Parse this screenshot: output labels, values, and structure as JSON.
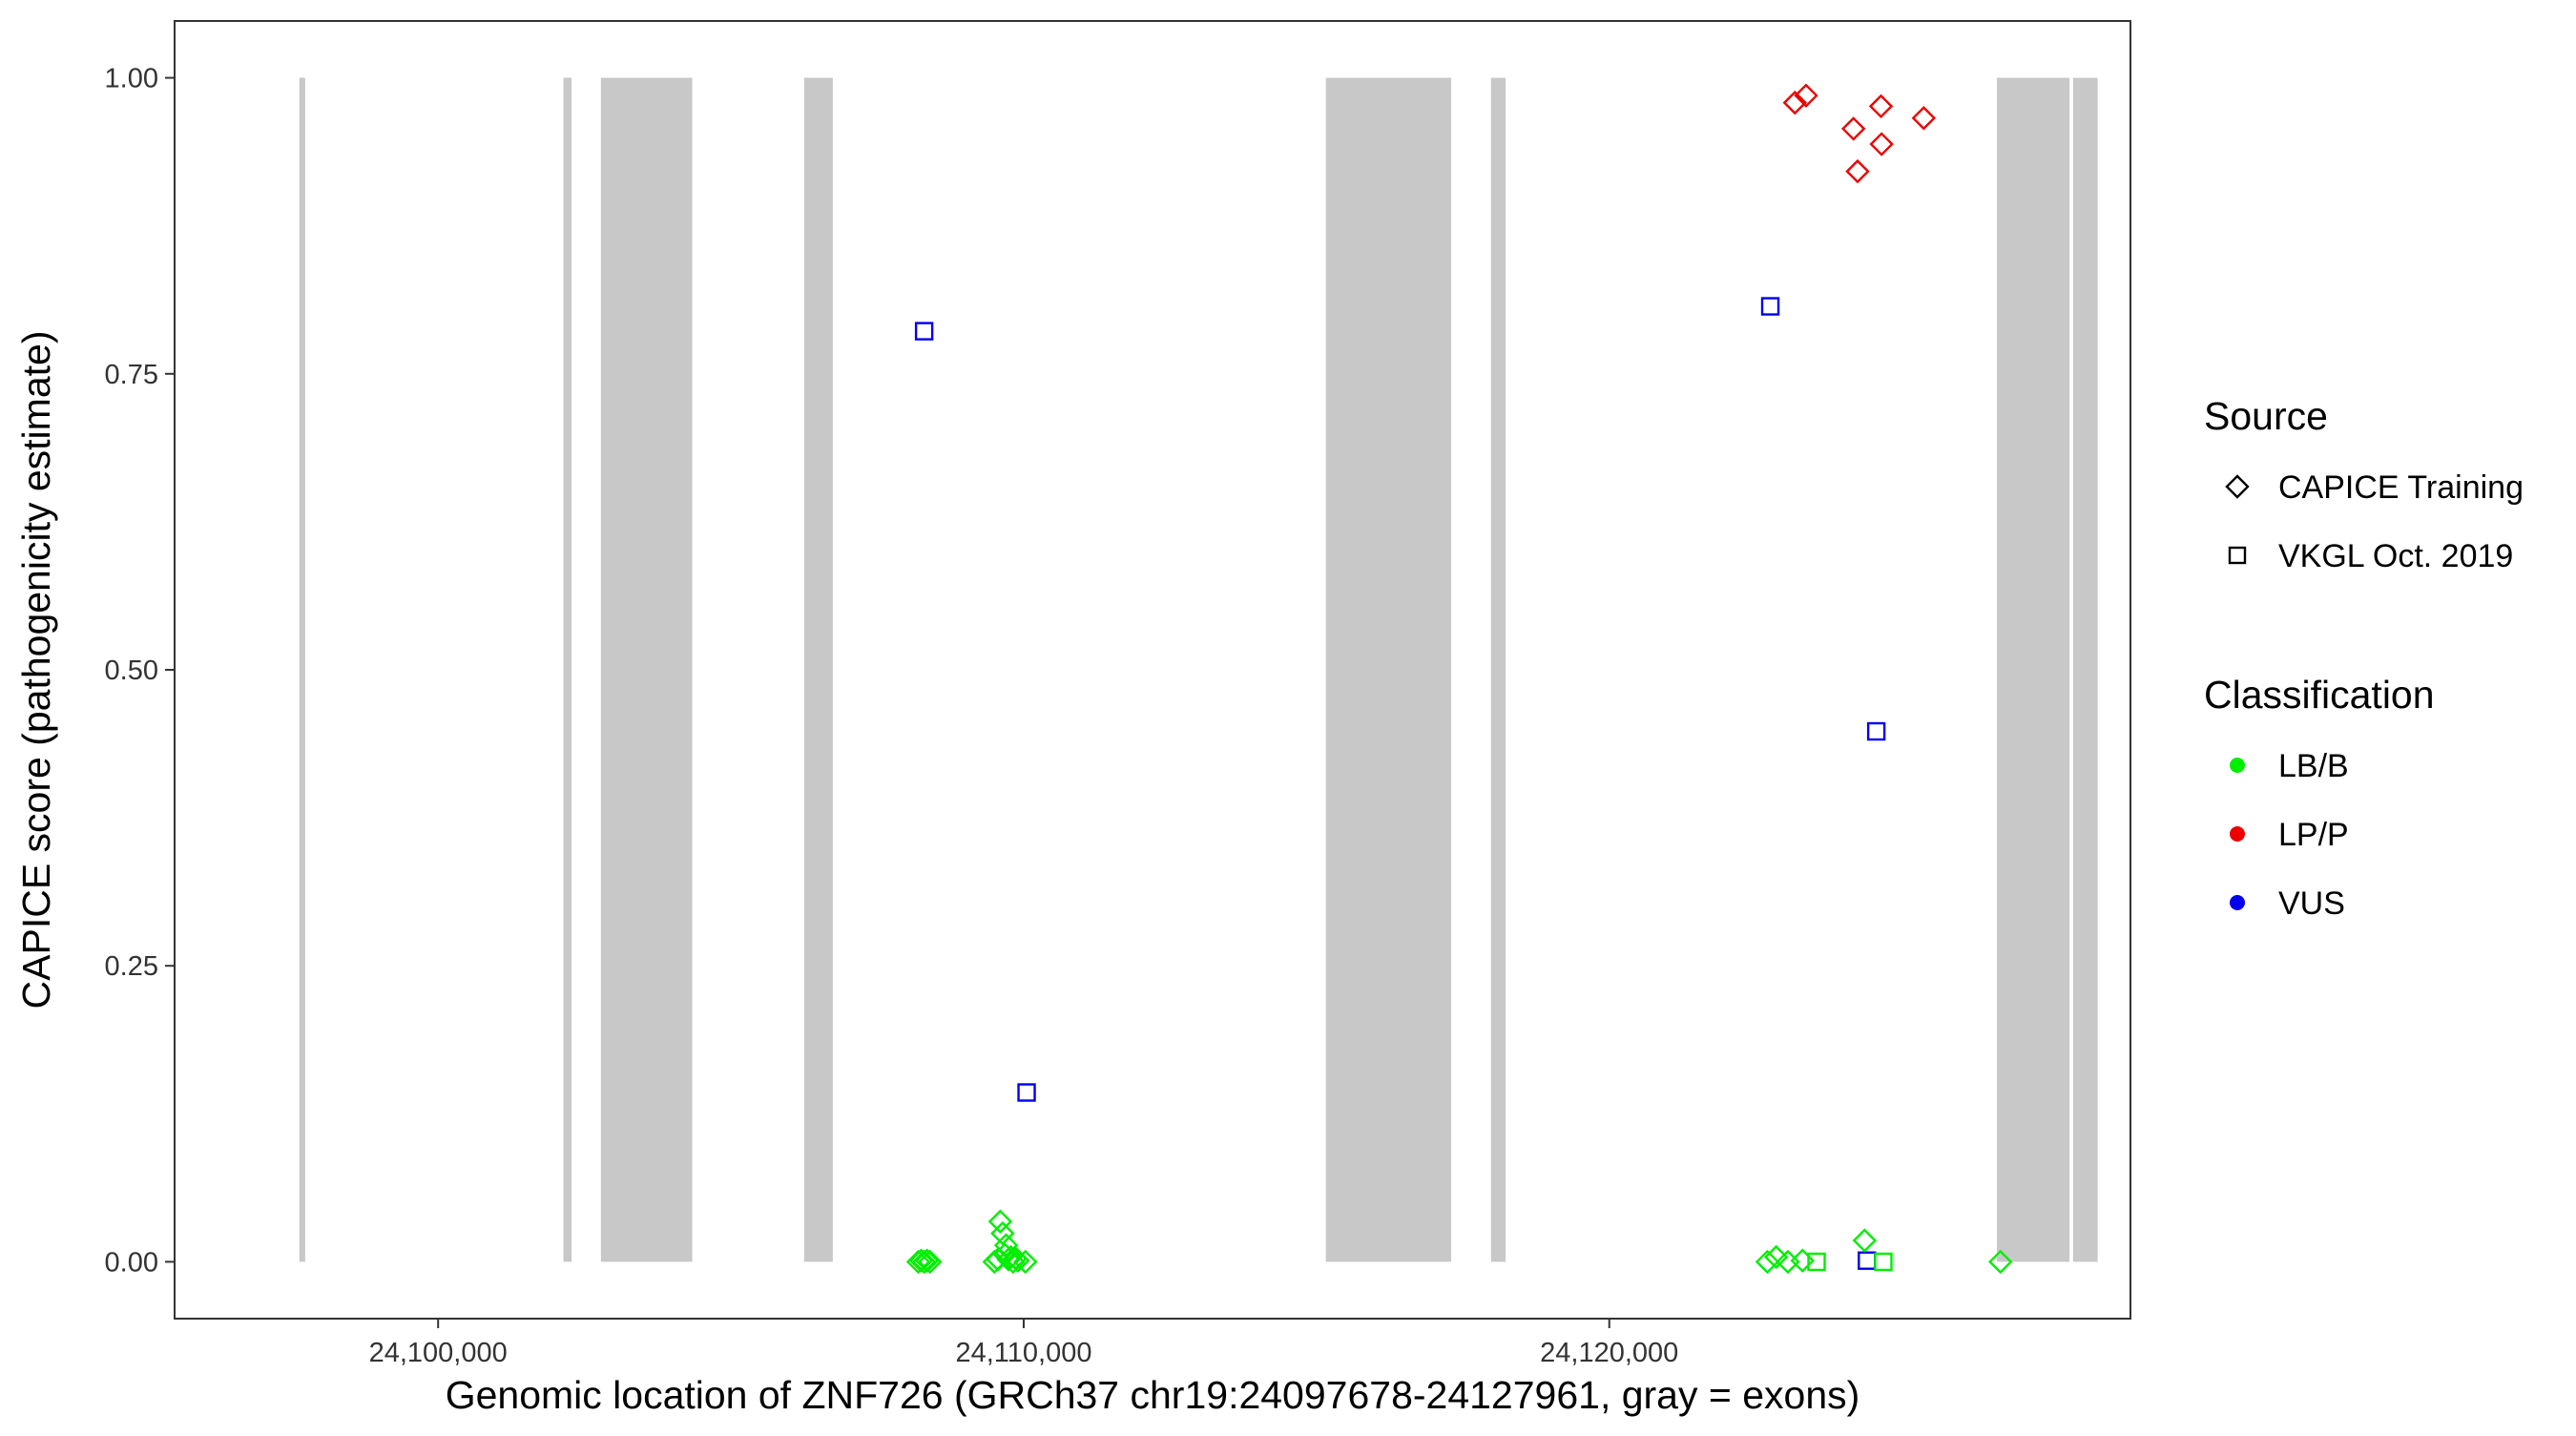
{
  "chart_data": {
    "type": "scatter",
    "title": "",
    "xlabel": "Genomic location of ZNF726 (GRCh37 chr19:24097678-24127961, gray = exons)",
    "ylabel": "CAPICE score (pathogenicity estimate)",
    "xlim": [
      24095500,
      24128900
    ],
    "ylim": [
      -0.048,
      1.048
    ],
    "x_ticks": [
      24100000,
      24110000,
      24120000
    ],
    "x_tick_labels": [
      "24,100,000",
      "24,110,000",
      "24,120,000"
    ],
    "y_ticks": [
      0,
      0.25,
      0.5,
      0.75,
      1
    ],
    "y_tick_labels": [
      "0.00",
      "0.25",
      "0.50",
      "0.75",
      "1.00"
    ],
    "grid": false,
    "exon_color": "#c8c8c8",
    "exons": [
      {
        "start": 24097630,
        "end": 24097730
      },
      {
        "start": 24102140,
        "end": 24102280
      },
      {
        "start": 24102780,
        "end": 24104340
      },
      {
        "start": 24106250,
        "end": 24106740
      },
      {
        "start": 24115160,
        "end": 24117300
      },
      {
        "start": 24117980,
        "end": 24118230
      },
      {
        "start": 24126620,
        "end": 24127860
      },
      {
        "start": 24127920,
        "end": 24128340
      }
    ],
    "legend_position": "right",
    "legends": [
      {
        "title": "Source",
        "entries": [
          {
            "label": "CAPICE Training",
            "shape": "diamond"
          },
          {
            "label": "VKGL Oct. 2019",
            "shape": "square"
          }
        ]
      },
      {
        "title": "Classification",
        "entries": [
          {
            "label": "LB/B",
            "color": "#00ee00"
          },
          {
            "label": "LP/P",
            "color": "#ee0000"
          },
          {
            "label": "VUS",
            "color": "#0000ee"
          }
        ]
      }
    ],
    "series": [
      {
        "name": "LP/P",
        "color": "#ee0000",
        "source": "CAPICE Training",
        "shape": "diamond",
        "x": [
          24123170,
          24123360,
          24124170,
          24124240,
          24124640,
          24124650,
          24125370
        ],
        "y": [
          0.979,
          0.985,
          0.957,
          0.921,
          0.976,
          0.944,
          0.966
        ]
      },
      {
        "name": "VUS",
        "color": "#0000ee",
        "source": "VKGL Oct. 2019",
        "shape": "square",
        "x": [
          24108300,
          24110050,
          24122750,
          24124400,
          24124560
        ],
        "y": [
          0.786,
          0.143,
          0.807,
          0.001,
          0.448
        ]
      },
      {
        "name": "LB/B",
        "color": "#00ee00",
        "source": "CAPICE Training",
        "shape": "diamond",
        "x": [
          24108200,
          24108250,
          24108300,
          24108350,
          24108400,
          24109500,
          24109560,
          24109600,
          24109640,
          24109680,
          24109700,
          24109740,
          24109780,
          24109820,
          24109860,
          24109900,
          24110030,
          24122700,
          24122850,
          24123050,
          24123300,
          24124360,
          24126680
        ],
        "y": [
          0.0,
          0.001,
          0.0,
          0.001,
          0.0,
          0.0,
          0.002,
          0.034,
          0.024,
          0.006,
          0.014,
          0.002,
          0.004,
          0.0,
          0.003,
          0.001,
          0.0,
          0.0,
          0.004,
          0.0,
          0.001,
          0.018,
          0.0
        ]
      },
      {
        "name": "LB/B",
        "color": "#00ee00",
        "source": "VKGL Oct. 2019",
        "shape": "square",
        "x": [
          24123540,
          24124680
        ],
        "y": [
          0.0,
          0.0
        ]
      }
    ]
  }
}
